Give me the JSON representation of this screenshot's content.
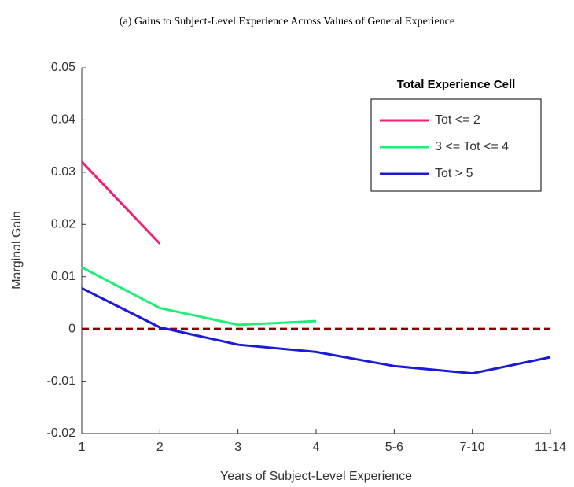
{
  "chart_data": {
    "type": "line",
    "title": "(a) Gains to Subject-Level Experience Across Values of General Experience",
    "xlabel": "Years of Subject-Level Experience",
    "ylabel": "Marginal Gain",
    "legend_title": "Total Experience Cell",
    "legend": "upper right",
    "categories": [
      "1",
      "2",
      "3",
      "4",
      "5-6",
      "7-10",
      "11-14"
    ],
    "series": [
      {
        "name": "Tot <= 2",
        "color": "#f0207a",
        "values": [
          0.032,
          0.0163,
          null,
          null,
          null,
          null,
          null
        ]
      },
      {
        "name": "3 <= Tot <= 4",
        "color": "#22ee77",
        "values": [
          0.0118,
          0.004,
          0.0008,
          0.0015,
          null,
          null,
          null
        ]
      },
      {
        "name": "Tot > 5",
        "color": "#1a1ad8",
        "values": [
          0.0078,
          0.0003,
          -0.003,
          -0.0044,
          -0.0071,
          -0.0085,
          -0.0054
        ]
      }
    ],
    "hline": {
      "value": 0,
      "color": "#8b0000"
    },
    "ylim": [
      -0.02,
      0.05
    ],
    "yticks": [
      -0.02,
      -0.01,
      0,
      0.01,
      0.02,
      0.03,
      0.04,
      0.05
    ]
  }
}
